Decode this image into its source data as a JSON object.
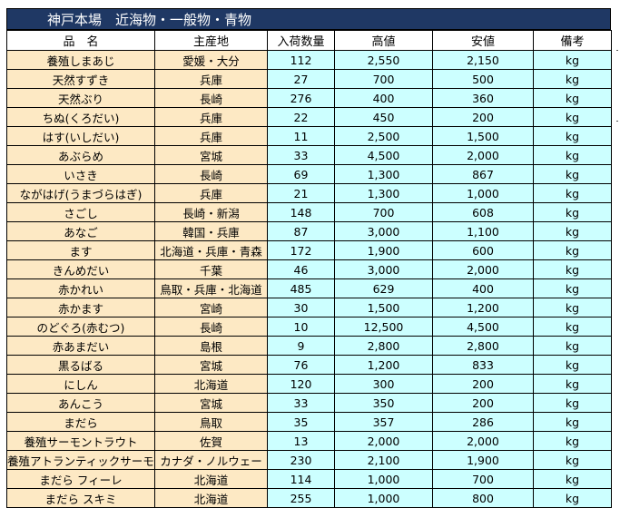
{
  "title": "神戸本場　近海物・一般物・青物",
  "columns": [
    "品　名",
    "主産地",
    "入荷数量",
    "高値",
    "安値",
    "備考"
  ],
  "rows": [
    [
      "養殖しまあじ",
      "愛媛・大分",
      "112",
      "2,550",
      "2,150",
      "kg"
    ],
    [
      "天然すずき",
      "兵庫",
      "27",
      "700",
      "500",
      "kg"
    ],
    [
      "天然ぶり",
      "長崎",
      "276",
      "400",
      "360",
      "kg"
    ],
    [
      "ちぬ(くろだい)",
      "兵庫",
      "22",
      "450",
      "200",
      "kg"
    ],
    [
      "はす(いしだい)",
      "兵庫",
      "11",
      "2,500",
      "1,500",
      "kg"
    ],
    [
      "あぶらめ",
      "宮城",
      "33",
      "4,500",
      "2,000",
      "kg"
    ],
    [
      "いさき",
      "長崎",
      "69",
      "1,300",
      "867",
      "kg"
    ],
    [
      "ながはげ(うまづらはぎ)",
      "兵庫",
      "21",
      "1,300",
      "1,000",
      "kg"
    ],
    [
      "さごし",
      "長崎・新潟",
      "148",
      "700",
      "608",
      "kg"
    ],
    [
      "あなご",
      "韓国・兵庫",
      "87",
      "3,000",
      "1,100",
      "kg"
    ],
    [
      "ます",
      "北海道・兵庫・青森",
      "172",
      "1,900",
      "600",
      "kg"
    ],
    [
      "きんめだい",
      "千葉",
      "46",
      "3,000",
      "2,000",
      "kg"
    ],
    [
      "赤かれい",
      "鳥取・兵庫・北海道",
      "485",
      "629",
      "400",
      "kg"
    ],
    [
      "赤かます",
      "宮崎",
      "30",
      "1,500",
      "1,200",
      "kg"
    ],
    [
      "のどぐろ(赤むつ)",
      "長崎",
      "10",
      "12,500",
      "4,500",
      "kg"
    ],
    [
      "赤あまだい",
      "島根",
      "9",
      "2,800",
      "2,800",
      "kg"
    ],
    [
      "黒るばる",
      "宮城",
      "76",
      "1,200",
      "833",
      "kg"
    ],
    [
      "にしん",
      "北海道",
      "120",
      "300",
      "200",
      "kg"
    ],
    [
      "あんこう",
      "宮城",
      "33",
      "350",
      "200",
      "kg"
    ],
    [
      "まだら",
      "鳥取",
      "35",
      "357",
      "286",
      "kg"
    ],
    [
      "養殖サーモントラウト",
      "佐賀",
      "13",
      "2,000",
      "2,000",
      "kg"
    ],
    [
      "養殖アトランティックサーモン",
      "カナダ・ノルウェー",
      "230",
      "2,100",
      "1,900",
      "kg"
    ],
    [
      "まだら フィーレ",
      "北海道",
      "114",
      "1,000",
      "700",
      "kg"
    ],
    [
      "まだら スキミ",
      "北海道",
      "255",
      "1,000",
      "800",
      "kg"
    ]
  ]
}
